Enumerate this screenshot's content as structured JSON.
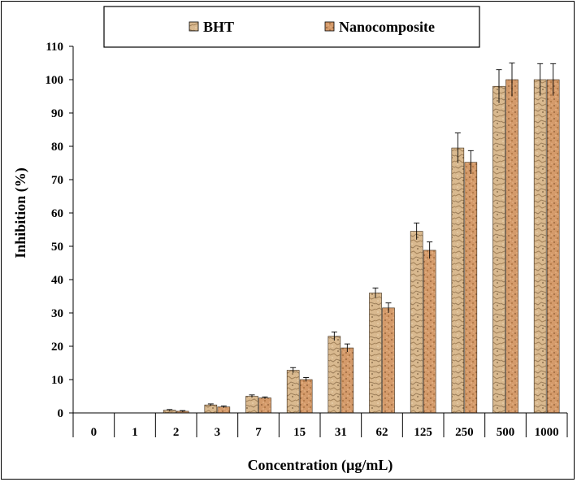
{
  "chart_data": {
    "type": "bar",
    "title": "",
    "xlabel": "Concentration (µg/mL)",
    "ylabel": "Inhibition (%)",
    "ylim": [
      0,
      110
    ],
    "yticks": [
      0,
      10,
      20,
      30,
      40,
      50,
      60,
      70,
      80,
      90,
      100,
      110
    ],
    "categories": [
      "0",
      "1",
      "2",
      "3",
      "7",
      "15",
      "31",
      "62",
      "125",
      "250",
      "500",
      "1000"
    ],
    "series": [
      {
        "name": "BHT",
        "color": "#d9b98f",
        "values": [
          0,
          0,
          0.8,
          2.4,
          5.0,
          12.8,
          23.0,
          36.0,
          54.5,
          79.5,
          98.0,
          100.0
        ],
        "errors": [
          0,
          0,
          0.2,
          0.3,
          0.4,
          0.8,
          1.3,
          1.5,
          2.5,
          4.5,
          5.0,
          4.8
        ]
      },
      {
        "name": "Nanocomposite",
        "color": "#d49a6a",
        "values": [
          0,
          0,
          0.5,
          1.8,
          4.5,
          10.0,
          19.5,
          31.5,
          48.8,
          75.2,
          100.0,
          100.0
        ],
        "errors": [
          0,
          0,
          0.2,
          0.3,
          0.3,
          0.6,
          1.2,
          1.5,
          2.5,
          3.5,
          5.0,
          4.8
        ]
      }
    ],
    "grid": false,
    "legend_position": "top"
  }
}
